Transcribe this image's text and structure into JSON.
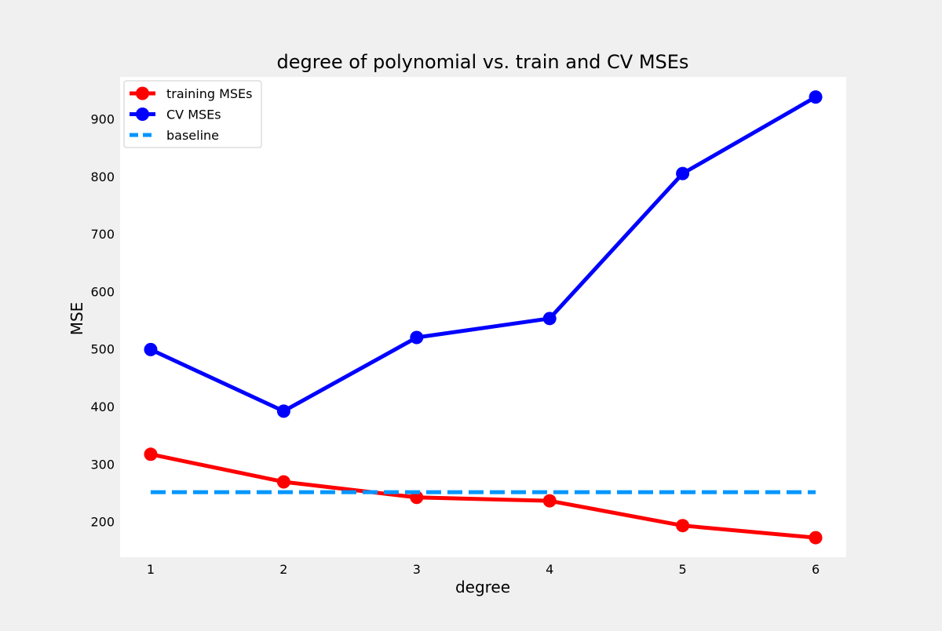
{
  "chart_data": {
    "type": "line",
    "title": "degree of polynomial vs. train and CV MSEs",
    "xlabel": "degree",
    "ylabel": "MSE",
    "x": [
      1,
      2,
      3,
      4,
      5,
      6
    ],
    "xlim": [
      0.77,
      6.23
    ],
    "ylim": [
      138,
      973
    ],
    "xticks": [
      1,
      2,
      3,
      4,
      5,
      6
    ],
    "yticks": [
      200,
      300,
      400,
      500,
      600,
      700,
      800,
      900
    ],
    "grid": false,
    "legend_position": "top-left",
    "series": [
      {
        "name": "training MSEs",
        "values": [
          317,
          269,
          242,
          236,
          193,
          172
        ],
        "color": "#ff0000",
        "style": "solid",
        "marker": "circle"
      },
      {
        "name": "CV MSEs",
        "values": [
          499,
          392,
          520,
          553,
          805,
          938
        ],
        "color": "#0000ff",
        "style": "solid",
        "marker": "circle"
      },
      {
        "name": "baseline",
        "values": [
          251,
          251,
          251,
          251,
          251,
          251
        ],
        "color": "#0096ff",
        "style": "dashed",
        "marker": "none"
      }
    ]
  }
}
